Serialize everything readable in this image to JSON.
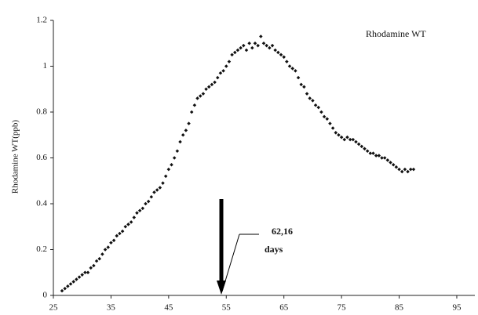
{
  "chart_data": {
    "type": "scatter",
    "y_label": "Rhodamine WT(ppb)",
    "annotation": [
      "62,16",
      "days"
    ],
    "series": [
      {
        "name": "Rhodamine WT",
        "color": "#111111",
        "x": [
          26.5,
          27,
          27.5,
          28,
          28.5,
          29,
          29.5,
          30,
          30.5,
          31,
          31.5,
          32,
          32.5,
          33,
          33.5,
          34,
          34.5,
          35,
          35.5,
          36,
          36.5,
          37,
          37.5,
          38,
          38.5,
          39,
          39.5,
          40,
          40.5,
          41,
          41.5,
          42,
          42.5,
          43,
          43.5,
          44,
          44.5,
          45,
          45.5,
          46,
          46.5,
          47,
          47.5,
          48,
          48.5,
          49,
          49.5,
          50,
          50.5,
          51,
          51.5,
          52,
          52.5,
          53,
          53.5,
          54,
          54.5,
          55,
          55.5,
          56,
          56.5,
          57,
          57.5,
          58,
          58.5,
          59,
          59.5,
          60,
          60.5,
          61,
          61.5,
          62,
          62.5,
          63,
          63.5,
          64,
          64.5,
          65,
          65.5,
          66,
          66.5,
          67,
          67.5,
          68,
          68.5,
          69,
          69.5,
          70,
          70.5,
          71,
          71.5,
          72,
          72.5,
          73,
          73.5,
          74,
          74.5,
          75,
          75.5,
          76,
          76.5,
          77,
          77.5,
          78,
          78.5,
          79,
          79.5,
          80,
          80.5,
          81,
          81.5,
          82,
          82.5,
          83,
          83.5,
          84,
          84.5,
          85,
          85.5,
          86,
          86.5,
          87,
          87.5
        ],
        "values": [
          0.02,
          0.03,
          0.04,
          0.05,
          0.06,
          0.07,
          0.08,
          0.09,
          0.1,
          0.1,
          0.12,
          0.13,
          0.15,
          0.16,
          0.18,
          0.2,
          0.21,
          0.23,
          0.24,
          0.26,
          0.27,
          0.28,
          0.3,
          0.31,
          0.32,
          0.34,
          0.36,
          0.37,
          0.38,
          0.4,
          0.41,
          0.43,
          0.45,
          0.46,
          0.47,
          0.49,
          0.52,
          0.55,
          0.57,
          0.6,
          0.63,
          0.67,
          0.7,
          0.72,
          0.75,
          0.8,
          0.83,
          0.86,
          0.87,
          0.88,
          0.9,
          0.91,
          0.92,
          0.93,
          0.95,
          0.97,
          0.98,
          1.0,
          1.02,
          1.05,
          1.06,
          1.07,
          1.08,
          1.09,
          1.07,
          1.1,
          1.08,
          1.1,
          1.09,
          1.13,
          1.1,
          1.09,
          1.08,
          1.09,
          1.07,
          1.06,
          1.05,
          1.04,
          1.02,
          1.0,
          0.99,
          0.98,
          0.95,
          0.92,
          0.91,
          0.88,
          0.86,
          0.85,
          0.83,
          0.82,
          0.8,
          0.78,
          0.77,
          0.75,
          0.73,
          0.71,
          0.7,
          0.69,
          0.68,
          0.69,
          0.68,
          0.68,
          0.67,
          0.66,
          0.65,
          0.64,
          0.63,
          0.62,
          0.62,
          0.61,
          0.61,
          0.6,
          0.6,
          0.59,
          0.58,
          0.57,
          0.56,
          0.55,
          0.54,
          0.55,
          0.54,
          0.55,
          0.55
        ]
      }
    ],
    "xlim": [
      25,
      98
    ],
    "xticks": [
      25,
      35,
      45,
      55,
      65,
      75,
      85,
      95
    ],
    "ylim": [
      0,
      1.2
    ],
    "yticks": [
      0,
      0.2,
      0.4,
      0.6,
      0.8,
      1,
      1.2
    ]
  }
}
